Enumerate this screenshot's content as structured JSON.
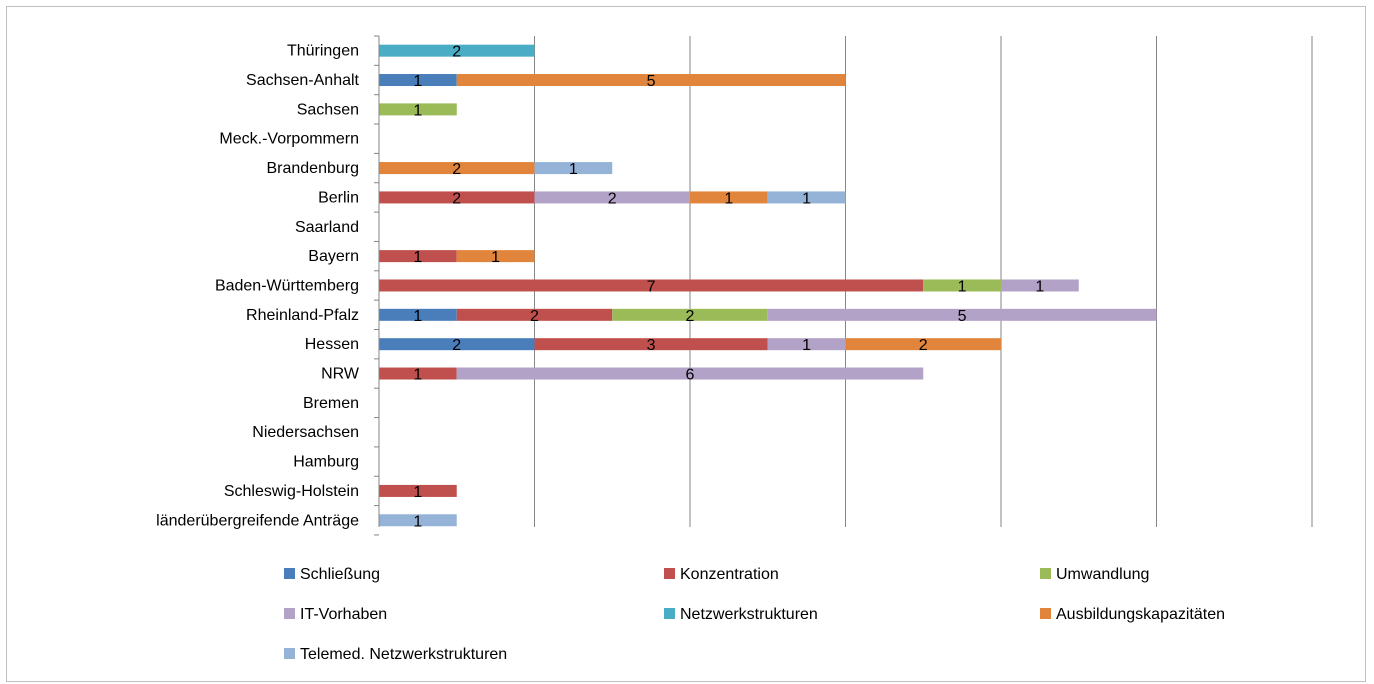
{
  "chart_data": {
    "type": "bar",
    "orientation": "horizontal",
    "stacked": true,
    "categories": [
      "Thüringen",
      "Sachsen-Anhalt",
      "Sachsen",
      "Meck.-Vorpommern",
      "Brandenburg",
      "Berlin",
      "Saarland",
      "Bayern",
      "Baden-Württemberg",
      "Rheinland-Pfalz",
      "Hessen",
      "NRW",
      "Bremen",
      "Niedersachsen",
      "Hamburg",
      "Schleswig-Holstein",
      "länderübergreifende Anträge"
    ],
    "series": [
      {
        "name": "Schließung",
        "color": "#4a7ebb",
        "values": [
          0,
          1,
          0,
          0,
          0,
          0,
          0,
          0,
          0,
          1,
          2,
          0,
          0,
          0,
          0,
          0,
          0
        ]
      },
      {
        "name": "Konzentration",
        "color": "#c0504d",
        "values": [
          0,
          0,
          0,
          0,
          0,
          2,
          0,
          1,
          7,
          2,
          3,
          1,
          0,
          0,
          0,
          1,
          0
        ]
      },
      {
        "name": "Umwandlung",
        "color": "#9bbb59",
        "values": [
          0,
          0,
          1,
          0,
          0,
          0,
          0,
          0,
          1,
          2,
          0,
          0,
          0,
          0,
          0,
          0,
          0
        ]
      },
      {
        "name": "IT-Vorhaben",
        "color": "#b3a2c7",
        "values": [
          0,
          0,
          0,
          0,
          0,
          2,
          0,
          0,
          1,
          5,
          1,
          6,
          0,
          0,
          0,
          0,
          0
        ]
      },
      {
        "name": "Netzwerkstrukturen",
        "color": "#4bacc6",
        "values": [
          2,
          0,
          0,
          0,
          0,
          0,
          0,
          0,
          0,
          0,
          0,
          0,
          0,
          0,
          0,
          0,
          0
        ]
      },
      {
        "name": "Ausbildungskapazitäten",
        "color": "#e0853b",
        "values": [
          0,
          5,
          0,
          0,
          2,
          1,
          0,
          1,
          0,
          0,
          2,
          0,
          0,
          0,
          0,
          0,
          0
        ]
      },
      {
        "name": "Telemed. Netzwerkstrukturen",
        "color": "#95b3d7",
        "values": [
          0,
          0,
          0,
          0,
          1,
          1,
          0,
          0,
          0,
          0,
          0,
          0,
          0,
          0,
          0,
          0,
          1
        ]
      }
    ],
    "xlim": [
      0,
      12
    ],
    "grid": true,
    "legend_position": "bottom"
  }
}
